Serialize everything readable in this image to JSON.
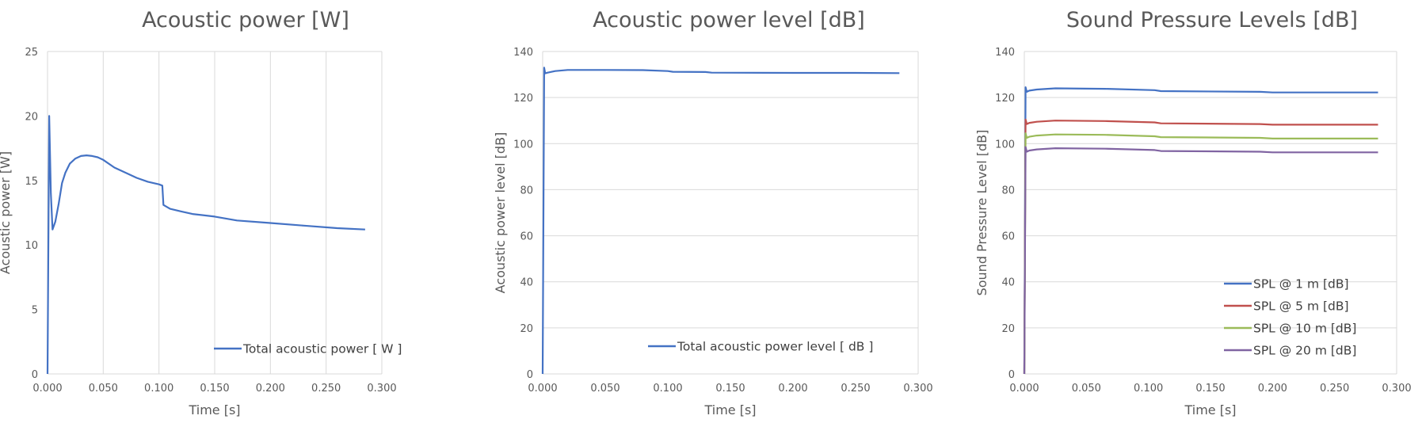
{
  "chart_data": [
    {
      "type": "line",
      "title": "Acoustic power [W]",
      "xlabel": "Time [s]",
      "ylabel": "Acoustic power [W]",
      "xlim": [
        0,
        0.3
      ],
      "ylim": [
        0,
        25
      ],
      "xticks": [
        "0.000",
        "0.050",
        "0.100",
        "0.150",
        "0.200",
        "0.250",
        "0.300"
      ],
      "yticks": [
        "0",
        "5",
        "10",
        "15",
        "20",
        "25"
      ],
      "grid": "vertical",
      "legend": "bottom-right",
      "series": [
        {
          "name": "Total acoustic power [ W ]",
          "color": "#4472c4",
          "x": [
            0,
            0.0015,
            0.003,
            0.0045,
            0.007,
            0.01,
            0.013,
            0.016,
            0.02,
            0.025,
            0.03,
            0.035,
            0.04,
            0.045,
            0.05,
            0.06,
            0.07,
            0.08,
            0.09,
            0.1,
            0.103,
            0.104,
            0.11,
            0.12,
            0.13,
            0.15,
            0.17,
            0.2,
            0.23,
            0.26,
            0.285
          ],
          "y": [
            0,
            20,
            14,
            11.2,
            11.8,
            13.2,
            14.8,
            15.6,
            16.3,
            16.7,
            16.9,
            16.95,
            16.9,
            16.8,
            16.6,
            16.0,
            15.6,
            15.2,
            14.9,
            14.7,
            14.6,
            13.1,
            12.8,
            12.6,
            12.4,
            12.2,
            11.9,
            11.7,
            11.5,
            11.3,
            11.2
          ]
        }
      ]
    },
    {
      "type": "line",
      "title": "Acoustic power level [dB]",
      "xlabel": "Time [s]",
      "ylabel": "Acoustic power level [dB]",
      "xlim": [
        0,
        0.3
      ],
      "ylim": [
        0,
        140
      ],
      "xticks": [
        "0.000",
        "0.050",
        "0.100",
        "0.150",
        "0.200",
        "0.250",
        "0.300"
      ],
      "yticks": [
        "0",
        "20",
        "40",
        "60",
        "80",
        "100",
        "120",
        "140"
      ],
      "grid": "horizontal",
      "legend": "bottom-right",
      "series": [
        {
          "name": "Total acoustic power level [ dB ]",
          "color": "#4472c4",
          "x": [
            0,
            0.0012,
            0.002,
            0.004,
            0.01,
            0.02,
            0.05,
            0.08,
            0.1,
            0.104,
            0.13,
            0.135,
            0.2,
            0.25,
            0.285
          ],
          "y": [
            0,
            133,
            130.5,
            130.8,
            131.5,
            132,
            132,
            131.9,
            131.5,
            131.2,
            131.1,
            130.8,
            130.7,
            130.7,
            130.6
          ]
        }
      ]
    },
    {
      "type": "line",
      "title": "Sound Pressure Levels [dB]",
      "xlabel": "Time [s]",
      "ylabel": "Sound Pressure Level [dB]",
      "xlim": [
        0,
        0.3
      ],
      "ylim": [
        0,
        140
      ],
      "xticks": [
        "0.000",
        "0.050",
        "0.100",
        "0.150",
        "0.200",
        "0.250",
        "0.300"
      ],
      "yticks": [
        "0",
        "20",
        "40",
        "60",
        "80",
        "100",
        "120",
        "140"
      ],
      "grid": "horizontal",
      "legend": "bottom-right",
      "series": [
        {
          "name": "SPL @ 1 m [dB]",
          "color": "#4472c4",
          "x": [
            0,
            0.001,
            0.002,
            0.004,
            0.01,
            0.025,
            0.065,
            0.105,
            0.11,
            0.19,
            0.2,
            0.285
          ],
          "y": [
            0,
            124.5,
            122.5,
            123,
            123.5,
            124,
            123.8,
            123.2,
            122.8,
            122.5,
            122.2,
            122.2
          ]
        },
        {
          "name": "SPL @ 5 m [dB]",
          "color": "#c0504d",
          "x": [
            0,
            0.001,
            0.002,
            0.004,
            0.01,
            0.025,
            0.065,
            0.105,
            0.11,
            0.19,
            0.2,
            0.285
          ],
          "y": [
            0,
            110.5,
            108.5,
            109,
            109.5,
            110,
            109.8,
            109.2,
            108.8,
            108.5,
            108.2,
            108.2
          ]
        },
        {
          "name": "SPL @ 10 m [dB]",
          "color": "#9bbb59",
          "x": [
            0,
            0.001,
            0.002,
            0.004,
            0.01,
            0.025,
            0.065,
            0.105,
            0.11,
            0.19,
            0.2,
            0.285
          ],
          "y": [
            0,
            104.5,
            102.5,
            103,
            103.5,
            104,
            103.8,
            103.2,
            102.8,
            102.5,
            102.2,
            102.2
          ]
        },
        {
          "name": "SPL @ 20 m [dB]",
          "color": "#8064a2",
          "x": [
            0,
            0.001,
            0.002,
            0.004,
            0.01,
            0.025,
            0.065,
            0.105,
            0.11,
            0.19,
            0.2,
            0.285
          ],
          "y": [
            0,
            98.5,
            96.5,
            97,
            97.5,
            98,
            97.8,
            97.2,
            96.8,
            96.5,
            96.2,
            96.2
          ]
        }
      ]
    }
  ]
}
